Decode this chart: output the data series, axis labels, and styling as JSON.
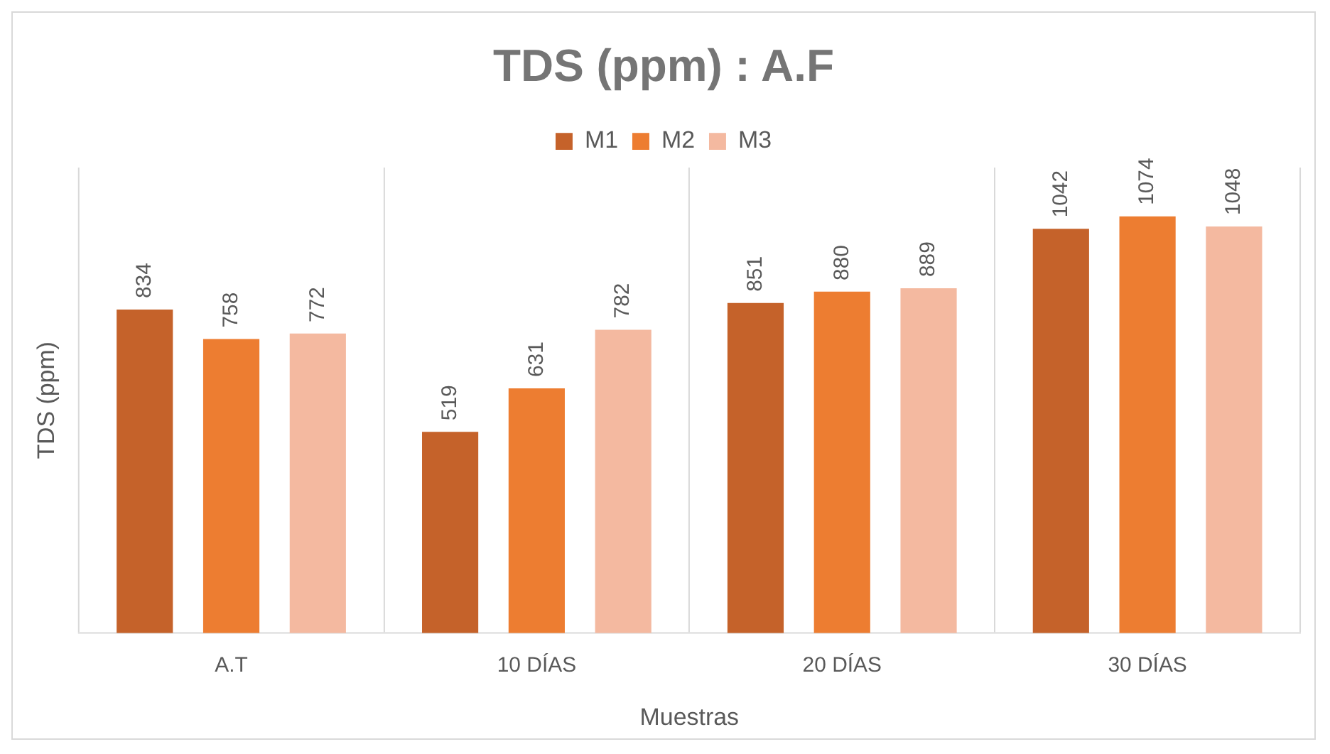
{
  "chart_data": {
    "type": "bar",
    "title": "TDS (ppm) : A.F",
    "xlabel": "Muestras",
    "ylabel": "TDS (ppm)",
    "categories": [
      "A.T",
      "10 DÍAS",
      "20 DÍAS",
      "30 DÍAS"
    ],
    "series": [
      {
        "name": "M1",
        "color": "#c5622a",
        "values": [
          834,
          519,
          851,
          1042
        ]
      },
      {
        "name": "M2",
        "color": "#ed7d31",
        "values": [
          758,
          631,
          880,
          1074
        ]
      },
      {
        "name": "M3",
        "color": "#f4b9a0",
        "values": [
          772,
          782,
          889,
          1048
        ]
      }
    ],
    "ylim": [
      0,
      1200
    ],
    "tick_labels": "x",
    "grid": "x",
    "legend": "top",
    "data_labels": true
  }
}
